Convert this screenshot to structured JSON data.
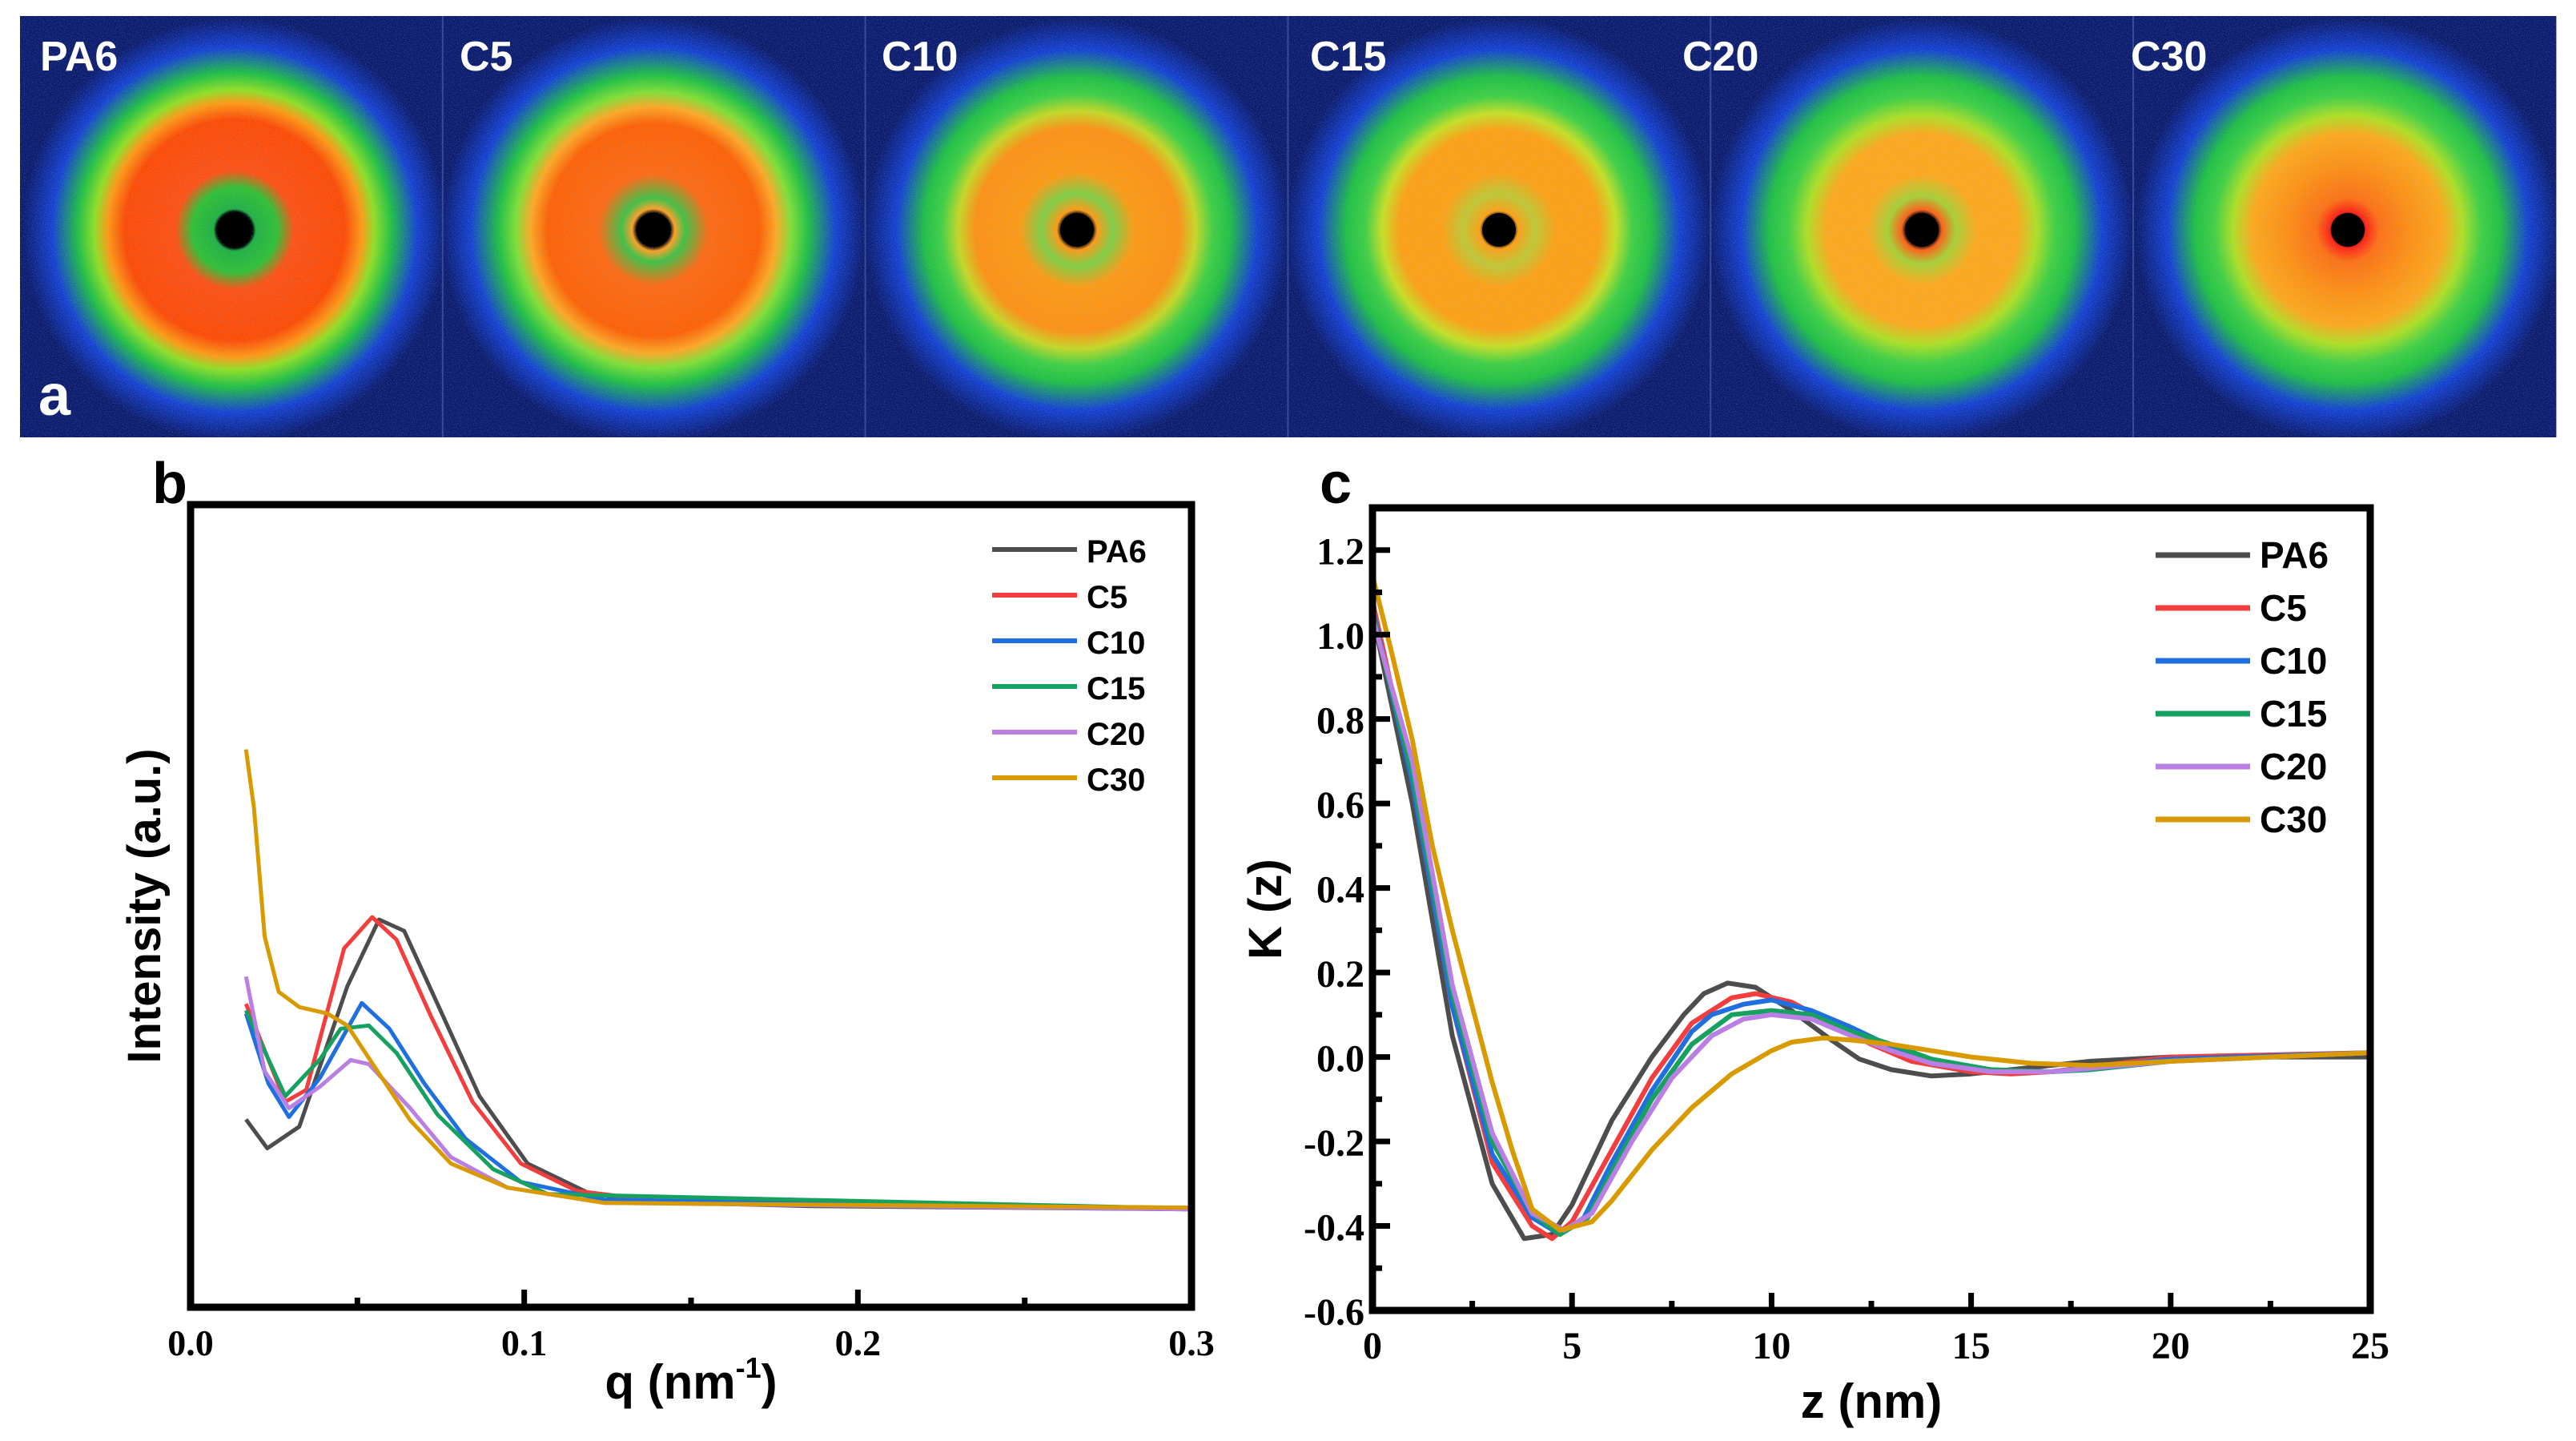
{
  "figure": {
    "panel_a": {
      "letter": "a",
      "samples": [
        "PA6",
        "C5",
        "C10",
        "C15",
        "C20",
        "C30"
      ]
    },
    "panel_b_letter": "b",
    "panel_c_letter": "c"
  },
  "series_colors": {
    "PA6": "#4d4d4d",
    "C5": "#f43d3d",
    "C10": "#1f6fe0",
    "C15": "#17a160",
    "C20": "#b97fe2",
    "C30": "#d99a00"
  },
  "chart_data": [
    {
      "type": "line",
      "id": "b",
      "title": "",
      "xlabel": "q (nm",
      "xlabel_sup": "-1",
      "xlabel_end": ")",
      "ylabel": "Intensity (a.u.)",
      "xlim": [
        0.0,
        0.3
      ],
      "ylim": [
        0,
        100
      ],
      "y_units_note": "relative",
      "xticks": [
        "0.0",
        "0.1",
        "0.2",
        "0.3"
      ],
      "xtick_values": [
        0.0,
        0.1,
        0.2,
        0.3
      ],
      "xminor": [
        0.05,
        0.15,
        0.25
      ],
      "yticks": [],
      "legend": "top-right",
      "series": [
        {
          "name": "PA6",
          "x": [
            0.0166,
            0.023,
            0.0326,
            0.047,
            0.0565,
            0.064,
            0.074,
            0.0866,
            0.101,
            0.12,
            0.145,
            0.186,
            0.3
          ],
          "y": [
            23.4,
            19.8,
            22.5,
            40,
            48.3,
            46.9,
            37.8,
            26.3,
            17.9,
            14.1,
            13,
            12.6,
            12.2
          ]
        },
        {
          "name": "C5",
          "x": [
            0.0166,
            0.0284,
            0.0347,
            0.046,
            0.0544,
            0.0617,
            0.072,
            0.0845,
            0.099,
            0.1157,
            0.145,
            0.3
          ],
          "y": [
            37.8,
            25.6,
            27.1,
            44.7,
            48.6,
            45.8,
            36.3,
            25.6,
            17.9,
            14.5,
            13,
            12.4
          ]
        },
        {
          "name": "C10",
          "x": [
            0.0166,
            0.0233,
            0.0295,
            0.0388,
            0.0513,
            0.0596,
            0.07,
            0.0824,
            0.099,
            0.124,
            0.3
          ],
          "y": [
            36.6,
            27.9,
            23.7,
            28.6,
            37.9,
            34.7,
            27.9,
            21,
            15.6,
            13.4,
            12.2
          ]
        },
        {
          "name": "C15",
          "x": [
            0.0166,
            0.0284,
            0.0388,
            0.045,
            0.0534,
            0.0617,
            0.074,
            0.0907,
            0.107,
            0.3
          ],
          "y": [
            37.0,
            26.3,
            30.9,
            34.7,
            35.1,
            31.7,
            24,
            17.2,
            14.1,
            12.3
          ]
        },
        {
          "name": "C20",
          "x": [
            0.0166,
            0.0222,
            0.0295,
            0.0388,
            0.048,
            0.0534,
            0.0658,
            0.078,
            0.095,
            0.124,
            0.3
          ],
          "y": [
            41.2,
            29.4,
            24.8,
            27.5,
            30.8,
            30.3,
            24.8,
            18.7,
            14.9,
            13,
            12.2
          ]
        },
        {
          "name": "C30",
          "x": [
            0.0166,
            0.019,
            0.0222,
            0.0264,
            0.0326,
            0.041,
            0.047,
            0.0554,
            0.0658,
            0.078,
            0.095,
            0.124,
            0.3
          ],
          "y": [
            69.5,
            62.2,
            46.2,
            39.3,
            37.4,
            36.6,
            35.1,
            29.8,
            23.3,
            17.9,
            14.9,
            13,
            12.4
          ]
        }
      ]
    },
    {
      "type": "line",
      "id": "c",
      "title": "",
      "xlabel": "z (nm)",
      "ylabel": "K (z)",
      "xlim": [
        0,
        25
      ],
      "ylim": [
        -0.6,
        1.3
      ],
      "xticks": [
        "0",
        "5",
        "10",
        "15",
        "20",
        "25"
      ],
      "xtick_values": [
        0,
        5,
        10,
        15,
        20,
        25
      ],
      "xminor": [
        2.5,
        7.5,
        12.5,
        17.5,
        22.5
      ],
      "yticks": [
        "-0.6",
        "-0.4",
        "-0.2",
        "0.0",
        "0.2",
        "0.4",
        "0.6",
        "0.8",
        "1.0",
        "1.2"
      ],
      "ytick_values": [
        -0.6,
        -0.4,
        -0.2,
        0.0,
        0.2,
        0.4,
        0.6,
        0.8,
        1.0,
        1.2
      ],
      "yminor": [
        -0.5,
        -0.3,
        -0.1,
        0.1,
        0.3,
        0.5,
        0.7,
        0.9,
        1.1
      ],
      "legend": "top-right",
      "series": [
        {
          "name": "PA6",
          "x": [
            0,
            1,
            2,
            3,
            3.8,
            4.5,
            5,
            6,
            7,
            7.8,
            8.3,
            8.9,
            9.6,
            10.5,
            11.5,
            12.2,
            13,
            14,
            15,
            16,
            17,
            18,
            20,
            25
          ],
          "y": [
            1.05,
            0.6,
            0.05,
            -0.3,
            -0.43,
            -0.42,
            -0.35,
            -0.15,
            0.0,
            0.1,
            0.15,
            0.175,
            0.165,
            0.11,
            0.04,
            -0.005,
            -0.03,
            -0.045,
            -0.04,
            -0.03,
            -0.02,
            -0.01,
            0.0,
            0.0
          ]
        },
        {
          "name": "C5",
          "x": [
            0,
            1,
            2,
            3,
            4,
            4.5,
            5,
            6,
            7,
            8,
            9,
            9.6,
            10.5,
            11.5,
            12.5,
            13.5,
            15,
            16,
            17,
            20,
            25
          ],
          "y": [
            1.08,
            0.65,
            0.12,
            -0.25,
            -0.4,
            -0.43,
            -0.39,
            -0.22,
            -0.05,
            0.08,
            0.14,
            0.15,
            0.13,
            0.08,
            0.03,
            -0.01,
            -0.035,
            -0.04,
            -0.035,
            0.0,
            0.01
          ]
        },
        {
          "name": "C10",
          "x": [
            0,
            1,
            2,
            3,
            4,
            4.7,
            5.3,
            6,
            7,
            8,
            8.5,
            9.3,
            10,
            11,
            12,
            13,
            14,
            15.5,
            17,
            20,
            25
          ],
          "y": [
            1.06,
            0.65,
            0.12,
            -0.23,
            -0.38,
            -0.42,
            -0.38,
            -0.25,
            -0.08,
            0.06,
            0.1,
            0.125,
            0.135,
            0.11,
            0.07,
            0.025,
            -0.015,
            -0.035,
            -0.035,
            -0.005,
            0.01
          ]
        },
        {
          "name": "C15",
          "x": [
            0,
            1,
            2,
            3,
            4,
            4.7,
            5.4,
            6,
            7,
            8,
            9,
            10,
            11,
            12,
            13,
            14,
            15.5,
            17,
            18,
            20,
            25
          ],
          "y": [
            1.05,
            0.67,
            0.15,
            -0.2,
            -0.37,
            -0.42,
            -0.38,
            -0.27,
            -0.1,
            0.03,
            0.1,
            0.11,
            0.1,
            0.06,
            0.03,
            -0.005,
            -0.03,
            -0.035,
            -0.03,
            -0.01,
            0.01
          ]
        },
        {
          "name": "C20",
          "x": [
            0,
            1,
            2,
            3,
            4,
            4.8,
            5.5,
            6.5,
            7.5,
            8.5,
            9.3,
            10,
            11,
            12,
            13,
            14,
            15.5,
            17,
            20,
            25
          ],
          "y": [
            1.04,
            0.7,
            0.17,
            -0.18,
            -0.37,
            -0.41,
            -0.37,
            -0.2,
            -0.05,
            0.05,
            0.09,
            0.1,
            0.09,
            0.05,
            0.015,
            -0.015,
            -0.035,
            -0.035,
            -0.01,
            0.01
          ]
        },
        {
          "name": "C30",
          "x": [
            0,
            0.5,
            1,
            1.5,
            2,
            2.5,
            3,
            3.5,
            4,
            4.7,
            5.5,
            6,
            7,
            8,
            9,
            10,
            10.5,
            11.3,
            12,
            13,
            14,
            15,
            16.5,
            18,
            20,
            25
          ],
          "y": [
            1.14,
            0.95,
            0.75,
            0.5,
            0.3,
            0.12,
            -0.06,
            -0.22,
            -0.36,
            -0.41,
            -0.39,
            -0.34,
            -0.22,
            -0.12,
            -0.04,
            0.015,
            0.035,
            0.045,
            0.04,
            0.03,
            0.015,
            0.0,
            -0.015,
            -0.02,
            -0.01,
            0.01
          ]
        }
      ]
    }
  ]
}
